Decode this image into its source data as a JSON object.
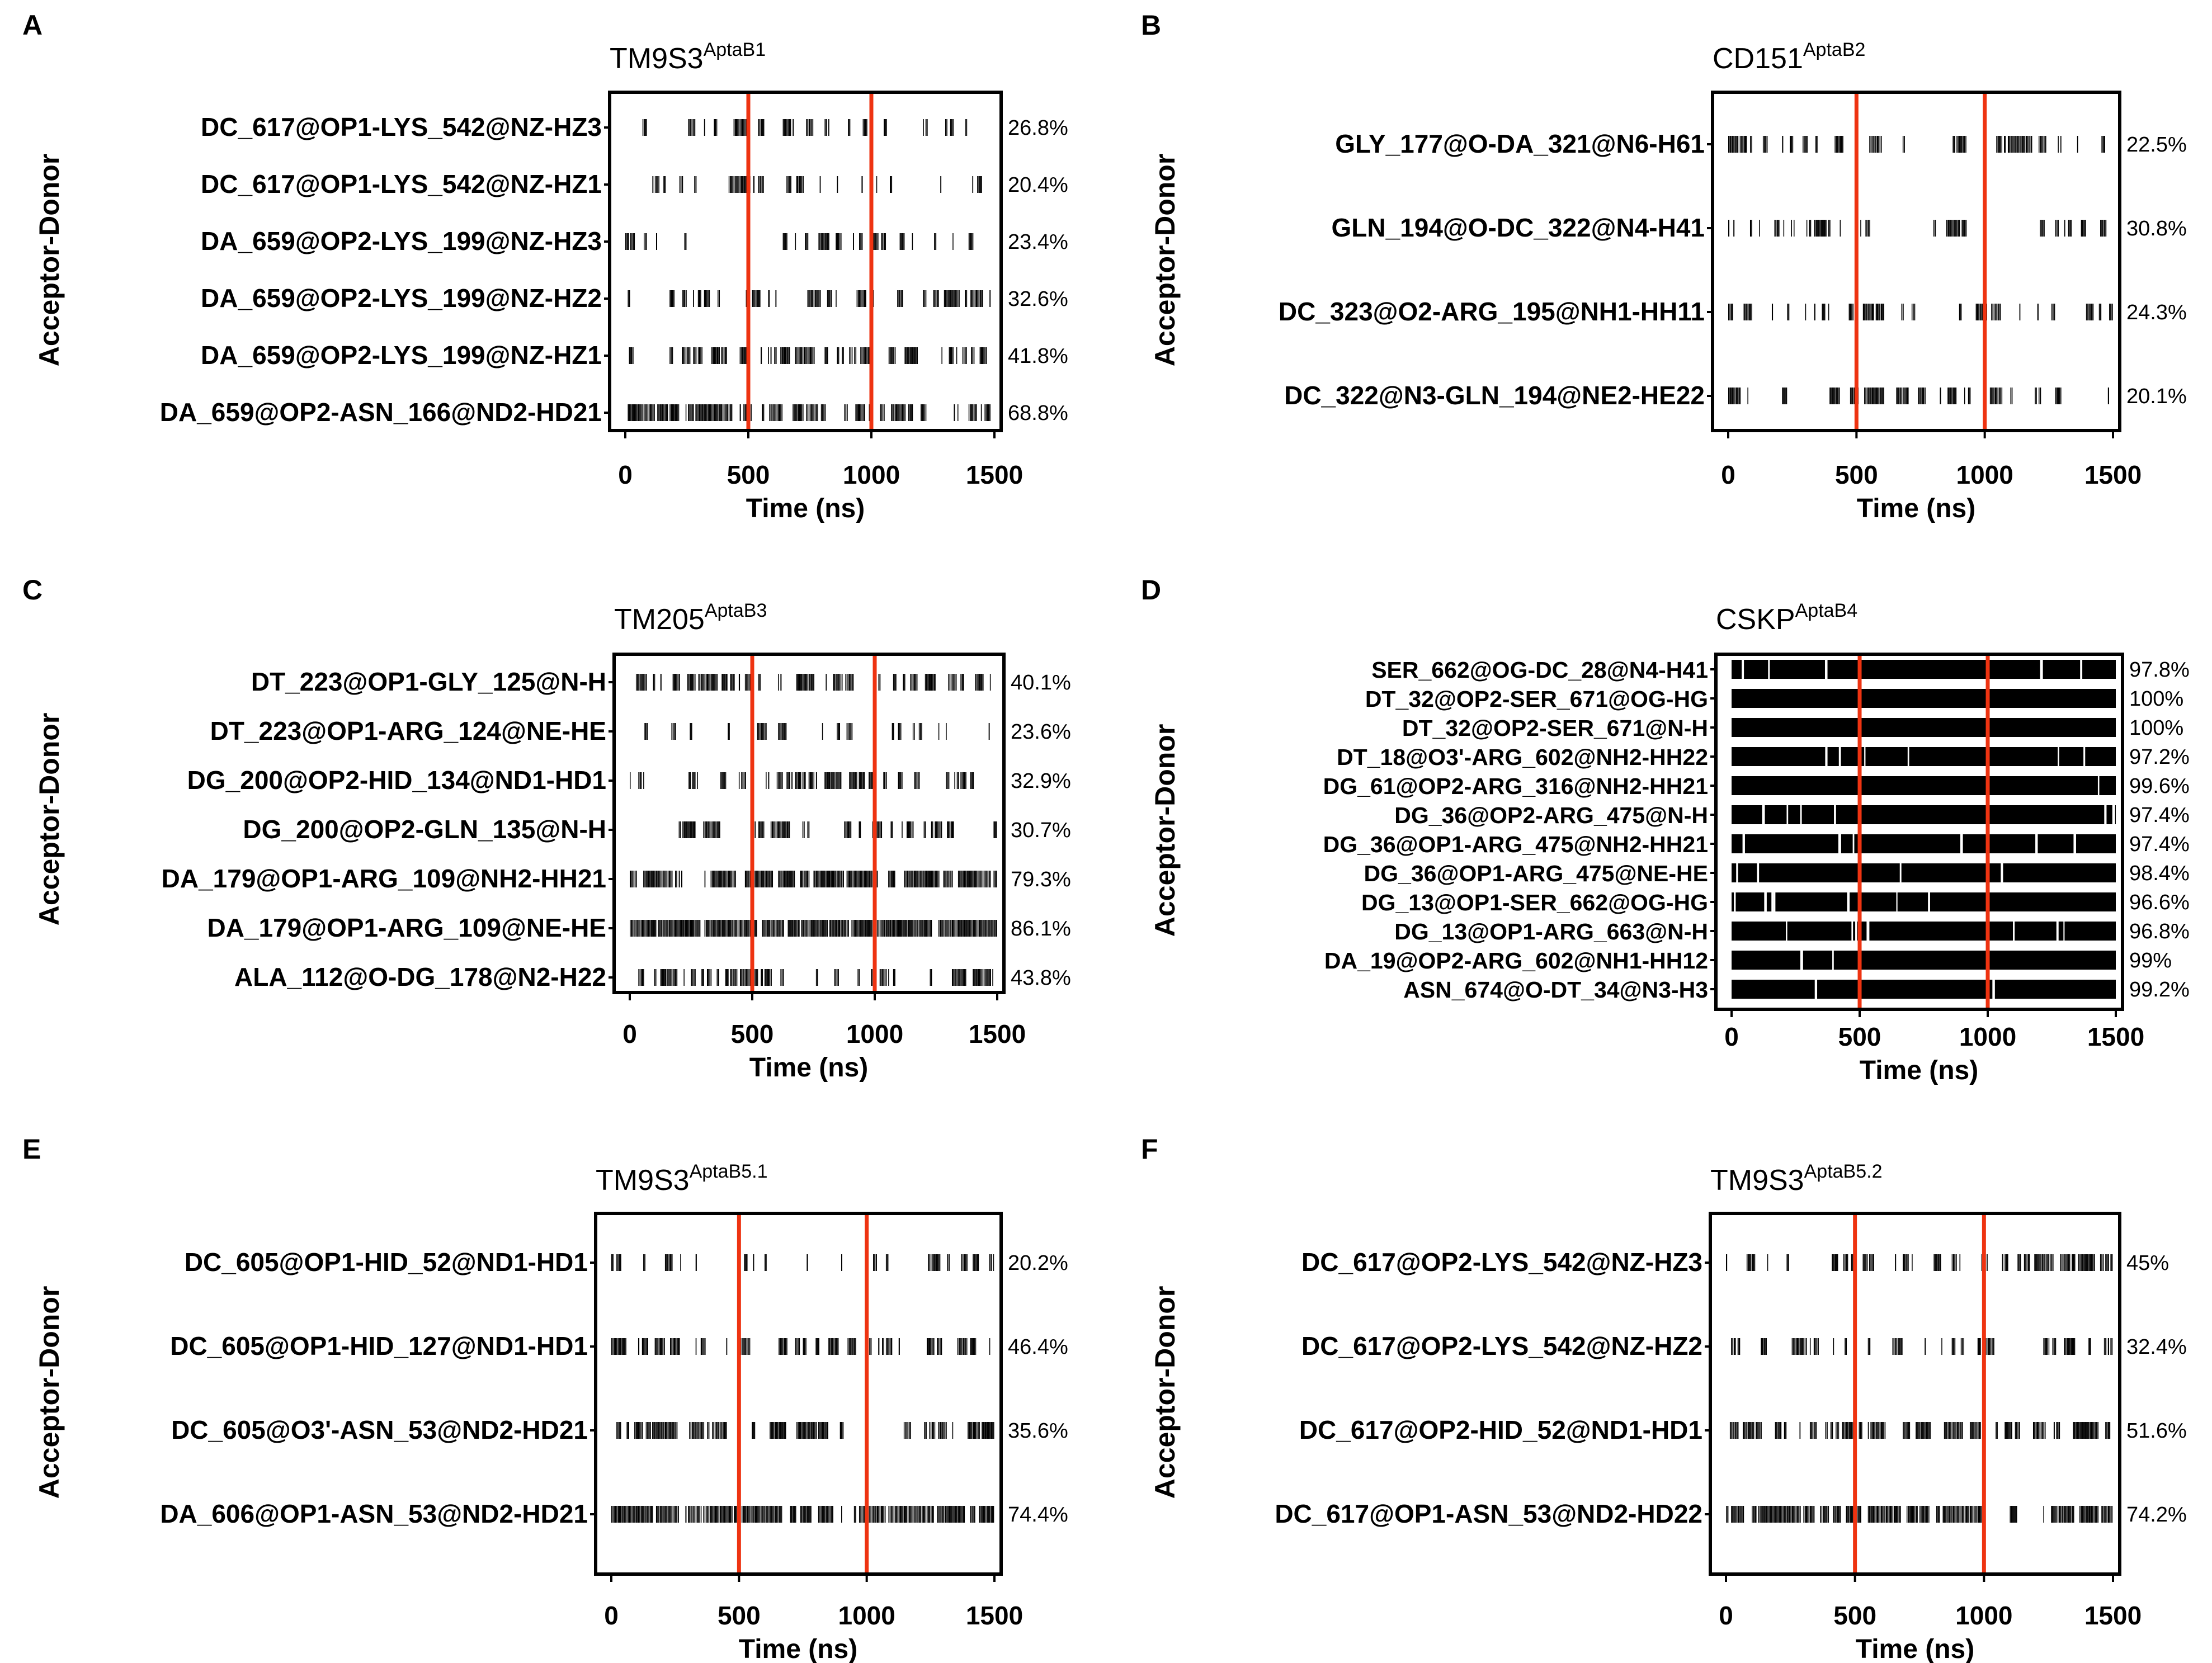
{
  "figure": {
    "ylabel": "Acceptor-Donor",
    "xlabel": "Time (ns)",
    "time_range": [
      0,
      1500
    ],
    "xticks": [
      0,
      500,
      1000,
      1500
    ],
    "marker_lines_ns": [
      500,
      1000
    ],
    "colors": {
      "bars": "#000000",
      "marker_lines": "#ee3311",
      "frame": "#000000"
    }
  },
  "chart_data": [
    {
      "type": "timeline",
      "panel": "A",
      "title": "TM9S3",
      "title_sup": "AptaB1",
      "xlabel": "Time (ns)",
      "ylabel": "Acceptor-Donor",
      "xlim": [
        0,
        1500
      ],
      "series": [
        {
          "name": "DC_617@OP1-LYS_542@NZ-HZ3",
          "occupancy": "26.8%",
          "frac": 0.268
        },
        {
          "name": "DC_617@OP1-LYS_542@NZ-HZ1",
          "occupancy": "20.4%",
          "frac": 0.204
        },
        {
          "name": "DA_659@OP2-LYS_199@NZ-HZ3",
          "occupancy": "23.4%",
          "frac": 0.234
        },
        {
          "name": "DA_659@OP2-LYS_199@NZ-HZ2",
          "occupancy": "32.6%",
          "frac": 0.326
        },
        {
          "name": "DA_659@OP2-LYS_199@NZ-HZ1",
          "occupancy": "41.8%",
          "frac": 0.418
        },
        {
          "name": "DA_659@OP2-ASN_166@ND2-HD21",
          "occupancy": "68.8%",
          "frac": 0.688
        }
      ]
    },
    {
      "type": "timeline",
      "panel": "B",
      "title": "CD151",
      "title_sup": "AptaB2",
      "xlabel": "Time (ns)",
      "ylabel": "Acceptor-Donor",
      "xlim": [
        0,
        1500
      ],
      "series": [
        {
          "name": "GLY_177@O-DA_321@N6-H61",
          "occupancy": "22.5%",
          "frac": 0.225
        },
        {
          "name": "GLN_194@O-DC_322@N4-H41",
          "occupancy": "30.8%",
          "frac": 0.308
        },
        {
          "name": "DC_323@O2-ARG_195@NH1-HH11",
          "occupancy": "24.3%",
          "frac": 0.243
        },
        {
          "name": "DC_322@N3-GLN_194@NE2-HE22",
          "occupancy": "20.1%",
          "frac": 0.201
        }
      ]
    },
    {
      "type": "timeline",
      "panel": "C",
      "title": "TM205",
      "title_sup": "AptaB3",
      "xlabel": "Time (ns)",
      "ylabel": "Acceptor-Donor",
      "xlim": [
        0,
        1500
      ],
      "series": [
        {
          "name": "DT_223@OP1-GLY_125@N-H",
          "occupancy": "40.1%",
          "frac": 0.401
        },
        {
          "name": "DT_223@OP1-ARG_124@NE-HE",
          "occupancy": "23.6%",
          "frac": 0.236
        },
        {
          "name": "DG_200@OP2-HID_134@ND1-HD1",
          "occupancy": "32.9%",
          "frac": 0.329
        },
        {
          "name": "DG_200@OP2-GLN_135@N-H",
          "occupancy": "30.7%",
          "frac": 0.307
        },
        {
          "name": "DA_179@OP1-ARG_109@NH2-HH21",
          "occupancy": "79.3%",
          "frac": 0.793
        },
        {
          "name": "DA_179@OP1-ARG_109@NE-HE",
          "occupancy": "86.1%",
          "frac": 0.861
        },
        {
          "name": "ALA_112@O-DG_178@N2-H22",
          "occupancy": "43.8%",
          "frac": 0.438
        }
      ]
    },
    {
      "type": "timeline",
      "panel": "D",
      "title": "CSKP",
      "title_sup": "AptaB4",
      "xlabel": "Time (ns)",
      "ylabel": "Acceptor-Donor",
      "xlim": [
        0,
        1500
      ],
      "series": [
        {
          "name": "SER_662@OG-DC_28@N4-H41",
          "occupancy": "97.8%",
          "frac": 0.978
        },
        {
          "name": "DT_32@OP2-SER_671@OG-HG",
          "occupancy": "100%",
          "frac": 1.0
        },
        {
          "name": "DT_32@OP2-SER_671@N-H",
          "occupancy": "100%",
          "frac": 1.0
        },
        {
          "name": "DT_18@O3'-ARG_602@NH2-HH22",
          "occupancy": "97.2%",
          "frac": 0.972
        },
        {
          "name": "DG_61@OP2-ARG_316@NH2-HH21",
          "occupancy": "99.6%",
          "frac": 0.996
        },
        {
          "name": "DG_36@OP2-ARG_475@N-H",
          "occupancy": "97.4%",
          "frac": 0.974
        },
        {
          "name": "DG_36@OP1-ARG_475@NH2-HH21",
          "occupancy": "97.4%",
          "frac": 0.974
        },
        {
          "name": "DG_36@OP1-ARG_475@NE-HE",
          "occupancy": "98.4%",
          "frac": 0.984
        },
        {
          "name": "DG_13@OP1-SER_662@OG-HG",
          "occupancy": "96.6%",
          "frac": 0.966
        },
        {
          "name": "DG_13@OP1-ARG_663@N-H",
          "occupancy": "96.8%",
          "frac": 0.968
        },
        {
          "name": "DA_19@OP2-ARG_602@NH1-HH12",
          "occupancy": "99%",
          "frac": 0.99
        },
        {
          "name": "ASN_674@O-DT_34@N3-H3",
          "occupancy": "99.2%",
          "frac": 0.992
        }
      ]
    },
    {
      "type": "timeline",
      "panel": "E",
      "title": "TM9S3",
      "title_sup": "AptaB5.1",
      "xlabel": "Time (ns)",
      "ylabel": "Acceptor-Donor",
      "xlim": [
        0,
        1500
      ],
      "series": [
        {
          "name": "DC_605@OP1-HID_52@ND1-HD1",
          "occupancy": "20.2%",
          "frac": 0.202
        },
        {
          "name": "DC_605@OP1-HID_127@ND1-HD1",
          "occupancy": "46.4%",
          "frac": 0.464
        },
        {
          "name": "DC_605@O3'-ASN_53@ND2-HD21",
          "occupancy": "35.6%",
          "frac": 0.356
        },
        {
          "name": "DA_606@OP1-ASN_53@ND2-HD21",
          "occupancy": "74.4%",
          "frac": 0.744
        }
      ]
    },
    {
      "type": "timeline",
      "panel": "F",
      "title": "TM9S3",
      "title_sup": "AptaB5.2",
      "xlabel": "Time (ns)",
      "ylabel": "Acceptor-Donor",
      "xlim": [
        0,
        1500
      ],
      "series": [
        {
          "name": "DC_617@OP2-LYS_542@NZ-HZ3",
          "occupancy": "45%",
          "frac": 0.45
        },
        {
          "name": "DC_617@OP2-LYS_542@NZ-HZ2",
          "occupancy": "32.4%",
          "frac": 0.324
        },
        {
          "name": "DC_617@OP2-HID_52@ND1-HD1",
          "occupancy": "51.6%",
          "frac": 0.516
        },
        {
          "name": "DC_617@OP1-ASN_53@ND2-HD22",
          "occupancy": "74.2%",
          "frac": 0.742
        }
      ]
    }
  ]
}
